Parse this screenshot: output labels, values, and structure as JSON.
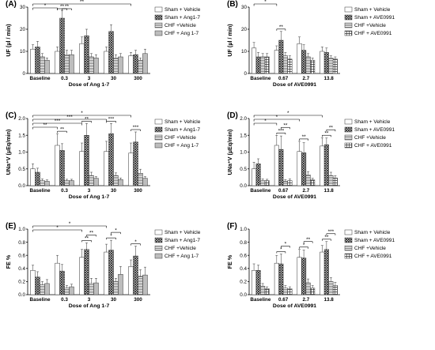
{
  "patterns": {
    "sham_vehicle": "solid",
    "treatment": "crosshatch",
    "chf_vehicle": "hstripe",
    "chf_treatment": "solid-grey-or-grid"
  },
  "colors": {
    "sham_vehicle": "#ffffff",
    "treatment": "#6d6d6d",
    "chf_vehicle": "#e3e3e3",
    "chf_treatment": "#bdbdbd",
    "axis": "#000000"
  },
  "chart_data": [
    {
      "panel": "(A)",
      "type": "bar",
      "ylabel": "UF (µl / min)",
      "xlabel": "Dose of Ang 1-7",
      "ylim": [
        0,
        30
      ],
      "yticks": [
        0,
        10,
        20,
        30
      ],
      "categories": [
        "Baseline",
        "0.3",
        "3",
        "30",
        "300"
      ],
      "legend_position": "top-right",
      "series": [
        {
          "name": "Sham + Vehicle",
          "values": [
            11,
            10,
            13.5,
            10,
            8
          ],
          "errors": [
            2,
            2,
            3,
            2,
            1.5
          ]
        },
        {
          "name": "Sham + Ang1-7",
          "values": [
            12,
            25,
            17,
            19,
            8.5
          ],
          "errors": [
            2.5,
            3.5,
            3,
            3,
            2
          ]
        },
        {
          "name": "CHF +Vehicle",
          "values": [
            7.5,
            8.5,
            7.5,
            7,
            6
          ],
          "errors": [
            1.5,
            2,
            1.5,
            1.5,
            1
          ]
        },
        {
          "name": "CHF + Ang 1-7",
          "values": [
            6,
            8.5,
            7,
            7.5,
            9
          ],
          "errors": [
            1,
            2,
            1.5,
            1.5,
            2
          ]
        }
      ],
      "significance": [
        {
          "from": 0,
          "to": 4,
          "label": "**"
        },
        {
          "from": 0,
          "to": 1,
          "label": "*"
        },
        {
          "from": 1,
          "to": 1,
          "label": "**"
        },
        {
          "from": 1,
          "to": 1,
          "label": "**"
        }
      ]
    },
    {
      "panel": "(B)",
      "type": "bar",
      "ylabel": "UF (µl / min)",
      "xlabel": "Dose of AVE0991",
      "ylim": [
        0,
        30
      ],
      "yticks": [
        0,
        10,
        20,
        30
      ],
      "categories": [
        "Baseline",
        "0.67",
        "2.7",
        "13.8"
      ],
      "legend_position": "top-right",
      "series": [
        {
          "name": "Sham + Vehicle",
          "values": [
            11.5,
            10.5,
            13.5,
            10
          ],
          "errors": [
            2.5,
            2,
            3,
            2
          ]
        },
        {
          "name": "Sham + AVE0991",
          "values": [
            7.5,
            15,
            10.5,
            9.5
          ],
          "errors": [
            2,
            4,
            2.5,
            2
          ]
        },
        {
          "name": "CHF +Vehicle",
          "values": [
            7.5,
            8,
            7.5,
            7
          ],
          "errors": [
            1.5,
            1.5,
            1.5,
            1
          ]
        },
        {
          "name": "CHF + AVE0991",
          "values": [
            7.5,
            6.5,
            6,
            6.5
          ],
          "errors": [
            1.5,
            1.5,
            1,
            1
          ]
        }
      ],
      "significance": [
        {
          "from": 0,
          "to": 1,
          "label": "*"
        },
        {
          "from": 1,
          "to": 1,
          "label": "**"
        }
      ]
    },
    {
      "panel": "(C)",
      "type": "bar",
      "ylabel": "UNa⁺V (µEq/min)",
      "xlabel": "Dose of Ang 1-7",
      "ylim": [
        0,
        2.0
      ],
      "yticks": [
        0.0,
        0.5,
        1.0,
        1.5,
        2.0
      ],
      "categories": [
        "Baseline",
        "0.3",
        "3",
        "30",
        "300"
      ],
      "legend_position": "top-right",
      "series": [
        {
          "name": "Sham + Vehicle",
          "values": [
            0.5,
            1.2,
            1.02,
            1.02,
            0.97
          ],
          "errors": [
            0.15,
            0.35,
            0.25,
            0.3,
            0.3
          ]
        },
        {
          "name": "Sham + Ang1-7",
          "values": [
            0.4,
            1.05,
            1.5,
            1.55,
            1.3
          ],
          "errors": [
            0.12,
            0.2,
            0.35,
            0.3,
            0.3
          ]
        },
        {
          "name": "CHF +Vehicle",
          "values": [
            0.15,
            0.15,
            0.3,
            0.3,
            0.37
          ],
          "errors": [
            0.05,
            0.04,
            0.1,
            0.08,
            0.12
          ]
        },
        {
          "name": "CHF + Ang 1-7",
          "values": [
            0.13,
            0.15,
            0.22,
            0.18,
            0.22
          ],
          "errors": [
            0.04,
            0.04,
            0.05,
            0.05,
            0.05
          ]
        }
      ],
      "significance": [
        {
          "from": 0,
          "to": 4,
          "label": "*"
        },
        {
          "from": 0,
          "to": 3,
          "label": "***"
        },
        {
          "from": 0,
          "to": 2,
          "label": "***"
        },
        {
          "from": 0,
          "to": 1,
          "label": "**"
        },
        {
          "from": 1,
          "to": 1,
          "label": "**"
        },
        {
          "from": 2,
          "to": 2,
          "label": "**"
        },
        {
          "from": 3,
          "to": 3,
          "label": "***"
        },
        {
          "from": 4,
          "to": 4,
          "label": "***"
        }
      ]
    },
    {
      "panel": "(D)",
      "type": "bar",
      "ylabel": "UNa⁺V (µEq/min)",
      "xlabel": "Dose of AVE0991",
      "ylim": [
        0,
        2.0
      ],
      "yticks": [
        0.0,
        0.5,
        1.0,
        1.5,
        2.0
      ],
      "categories": [
        "Baseline",
        "0.67",
        "2.7",
        "13.8"
      ],
      "legend_position": "top-right",
      "series": [
        {
          "name": "Sham + Vehicle",
          "values": [
            0.5,
            1.2,
            1.02,
            1.18
          ],
          "errors": [
            0.2,
            0.3,
            0.3,
            0.25
          ]
        },
        {
          "name": "Sham + AVE0991",
          "values": [
            0.65,
            1.08,
            0.98,
            1.22
          ],
          "errors": [
            0.15,
            0.4,
            0.3,
            0.2
          ]
        },
        {
          "name": "CHF +Vehicle",
          "values": [
            0.15,
            0.13,
            0.32,
            0.3
          ],
          "errors": [
            0.05,
            0.05,
            0.1,
            0.1
          ]
        },
        {
          "name": "CHF + AVE0991",
          "values": [
            0.15,
            0.15,
            0.17,
            0.23
          ],
          "errors": [
            0.04,
            0.05,
            0.05,
            0.07
          ]
        }
      ],
      "significance": [
        {
          "from": 0,
          "to": 3,
          "label": "*"
        },
        {
          "from": 0,
          "to": 2,
          "label": "*"
        },
        {
          "from": 0,
          "to": 1,
          "label": "*"
        },
        {
          "from": 1,
          "to": 1,
          "label": "***"
        },
        {
          "from": 1,
          "to": 1,
          "label": "**"
        },
        {
          "from": 2,
          "to": 2,
          "label": "**"
        },
        {
          "from": 3,
          "to": 3,
          "label": "**"
        },
        {
          "from": 3,
          "to": 3,
          "label": "**"
        }
      ]
    },
    {
      "panel": "(E)",
      "type": "bar",
      "ylabel": "FE %",
      "xlabel": "Dose of Ang 1-7",
      "ylim": [
        0,
        1.0
      ],
      "yticks": [
        0.0,
        0.2,
        0.4,
        0.6,
        0.8,
        1.0
      ],
      "categories": [
        "Baseline",
        "0.3",
        "3",
        "30",
        "300"
      ],
      "legend_position": "top-right",
      "series": [
        {
          "name": "Sham + Vehicle",
          "values": [
            0.37,
            0.48,
            0.57,
            0.65,
            0.43
          ],
          "errors": [
            0.08,
            0.12,
            0.12,
            0.12,
            0.1
          ]
        },
        {
          "name": "Sham + Ang1-7",
          "values": [
            0.27,
            0.36,
            0.69,
            0.68,
            0.59
          ],
          "errors": [
            0.08,
            0.1,
            0.1,
            0.15,
            0.15
          ]
        },
        {
          "name": "CHF +Vehicle",
          "values": [
            0.15,
            0.1,
            0.17,
            0.2,
            0.28
          ],
          "errors": [
            0.05,
            0.04,
            0.08,
            0.05,
            0.1
          ]
        },
        {
          "name": "CHF + Ang 1-7",
          "values": [
            0.17,
            0.12,
            0.18,
            0.31,
            0.3
          ],
          "errors": [
            0.06,
            0.04,
            0.07,
            0.12,
            0.12
          ]
        }
      ],
      "significance": [
        {
          "from": 0,
          "to": 3,
          "label": "*"
        },
        {
          "from": 0,
          "to": 2,
          "label": "*"
        },
        {
          "from": 2,
          "to": 2,
          "label": "**"
        },
        {
          "from": 2,
          "to": 2,
          "label": "**"
        },
        {
          "from": 3,
          "to": 3,
          "label": "*"
        },
        {
          "from": 3,
          "to": 3,
          "label": "*"
        },
        {
          "from": 4,
          "to": 4,
          "label": "*"
        }
      ]
    },
    {
      "panel": "(F)",
      "type": "bar",
      "ylabel": "FE %",
      "xlabel": "Dose of AVE0991",
      "ylim": [
        0,
        1.0
      ],
      "yticks": [
        0.0,
        0.2,
        0.4,
        0.6,
        0.8,
        1.0
      ],
      "categories": [
        "Baseline",
        "0.67",
        "2.7",
        "13.8"
      ],
      "legend_position": "top-right",
      "series": [
        {
          "name": "Sham + Vehicle",
          "values": [
            0.37,
            0.48,
            0.57,
            0.65
          ],
          "errors": [
            0.1,
            0.12,
            0.12,
            0.1
          ]
        },
        {
          "name": "Sham + AVE0991",
          "values": [
            0.37,
            0.47,
            0.56,
            0.69
          ],
          "errors": [
            0.08,
            0.15,
            0.12,
            0.12
          ]
        },
        {
          "name": "CHF +Vehicle",
          "values": [
            0.13,
            0.1,
            0.18,
            0.2
          ],
          "errors": [
            0.04,
            0.04,
            0.06,
            0.06
          ]
        },
        {
          "name": "CHF + AVE0991",
          "values": [
            0.09,
            0.09,
            0.1,
            0.14
          ],
          "errors": [
            0.03,
            0.03,
            0.04,
            0.05
          ]
        }
      ],
      "significance": [
        {
          "from": 1,
          "to": 1,
          "label": "*"
        },
        {
          "from": 1,
          "to": 1,
          "label": "*"
        },
        {
          "from": 2,
          "to": 2,
          "label": "*"
        },
        {
          "from": 2,
          "to": 2,
          "label": "**"
        },
        {
          "from": 3,
          "to": 3,
          "label": "**"
        },
        {
          "from": 3,
          "to": 3,
          "label": "***"
        }
      ]
    }
  ]
}
